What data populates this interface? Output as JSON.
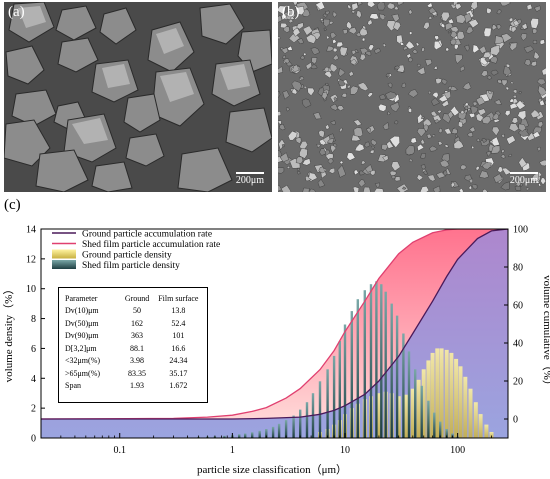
{
  "figure": {
    "panel_a": {
      "label": "(a)",
      "scale_bar": "200μm"
    },
    "panel_b": {
      "label": "(b)",
      "scale_bar": "200μm"
    },
    "panel_c": {
      "label": "(c)"
    }
  },
  "stats_table": {
    "headers": [
      "Parameter",
      "Ground",
      "Film surface"
    ],
    "rows": [
      [
        "Dv(10)μm",
        "50",
        "13.8"
      ],
      [
        "Dv(50)μm",
        "162",
        "52.4"
      ],
      [
        "Dv(90)μm",
        "363",
        "101"
      ],
      [
        "D[3,2]μm",
        "88.1",
        "16.6"
      ],
      [
        "<32μm(%)",
        "3.98",
        "24.34"
      ],
      [
        ">65μm(%)",
        "83.35",
        "35.17"
      ],
      [
        "Span",
        "1.93",
        "1.672"
      ]
    ]
  },
  "colors": {
    "ground_accum": "#4a1a5a",
    "shed_accum": "#e04070",
    "shed_fill": "#f6a0a6",
    "ground_fill": "#b49adc",
    "ground_density": "#e8d860",
    "shed_density": "#2f5a5c"
  },
  "chart_data": {
    "type": "bar",
    "xlabel": "particle size classification（μm）",
    "ylabel": "volume density（%）",
    "y2label": "volume cumulative（%）",
    "x_scale": "log",
    "xlim": [
      0.02,
      280
    ],
    "ylim": [
      0,
      14
    ],
    "y2lim": [
      -10,
      100
    ],
    "x_ticks": [
      "0.1",
      "1",
      "10",
      "100"
    ],
    "x_tick_values": [
      0.1,
      1,
      10,
      100
    ],
    "y_ticks": [
      0,
      2,
      4,
      6,
      8,
      10,
      12,
      14
    ],
    "y2_ticks": [
      0,
      20,
      40,
      60,
      80,
      100
    ],
    "legend_position": "top-left",
    "legend": [
      "Ground particle accumulation rate",
      "Shed film particle accumulation rate",
      "Ground particle density",
      "Shed film particle density"
    ],
    "series": [
      {
        "name": "Ground particle accumulation rate",
        "kind": "line",
        "axis": "right",
        "x": [
          0.02,
          1,
          2,
          4,
          6,
          8,
          10,
          15,
          20,
          30,
          40,
          60,
          80,
          100,
          150,
          200,
          280
        ],
        "y": [
          0,
          0,
          0.3,
          1,
          2.5,
          4.5,
          7,
          13,
          20,
          33,
          45,
          62,
          75,
          84,
          95,
          99,
          100
        ]
      },
      {
        "name": "Shed film particle accumulation rate",
        "kind": "line",
        "axis": "right",
        "x": [
          0.02,
          0.3,
          0.6,
          1,
          1.5,
          2,
          3,
          4,
          6,
          8,
          10,
          15,
          20,
          30,
          40,
          60,
          80,
          100,
          150,
          280
        ],
        "y": [
          0,
          0.3,
          1,
          2,
          4,
          6,
          11,
          16,
          26,
          36,
          46,
          62,
          74,
          87,
          93,
          98,
          99.5,
          100,
          100,
          100
        ]
      },
      {
        "name": "Ground particle density",
        "kind": "bar",
        "axis": "left",
        "x": [
          6,
          7,
          8,
          9,
          10,
          11.5,
          13,
          15,
          17,
          20,
          23,
          26,
          30,
          35,
          40,
          45,
          50,
          55,
          60,
          66,
          72,
          80,
          88,
          97,
          106,
          117,
          130,
          145,
          160,
          180,
          200
        ],
        "y": [
          0.4,
          0.6,
          0.9,
          1.2,
          1.6,
          2,
          2.3,
          2.6,
          2.8,
          3,
          3.1,
          3,
          2.8,
          2.9,
          3.3,
          3.9,
          4.6,
          5.2,
          5.7,
          6,
          6,
          5.9,
          5.7,
          5.3,
          4.8,
          4.1,
          3.3,
          2.4,
          1.6,
          0.9,
          0.4
        ]
      },
      {
        "name": "Shed film particle density",
        "kind": "bar",
        "axis": "left",
        "x": [
          0.4,
          0.5,
          0.6,
          0.7,
          0.85,
          1,
          1.15,
          1.3,
          1.5,
          1.75,
          2,
          2.3,
          2.6,
          3,
          3.5,
          4,
          4.6,
          5.2,
          6,
          7,
          8,
          9,
          10,
          11.5,
          13,
          15,
          17,
          19,
          21,
          23,
          26,
          29,
          33,
          37,
          42,
          48,
          55,
          62,
          70,
          80,
          90,
          100
        ],
        "y": [
          0.05,
          0.08,
          0.1,
          0.12,
          0.15,
          0.2,
          0.25,
          0.3,
          0.38,
          0.48,
          0.6,
          0.75,
          0.95,
          1.2,
          1.5,
          1.9,
          2.4,
          3,
          3.8,
          4.6,
          5.5,
          6.5,
          7.6,
          8.5,
          9.3,
          9.9,
          10.3,
          10.5,
          10.3,
          9.8,
          9,
          8.2,
          7,
          5.8,
          4.6,
          3.5,
          2.5,
          1.7,
          1.1,
          0.6,
          0.3,
          0.1
        ]
      }
    ]
  }
}
